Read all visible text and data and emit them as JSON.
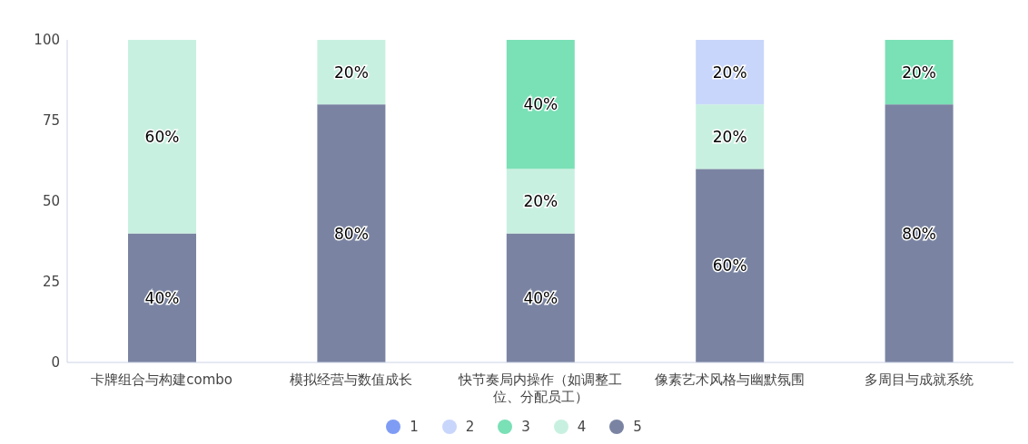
{
  "chart_data": {
    "type": "bar",
    "stacked": true,
    "categories": [
      "卡牌组合与构建combo",
      "模拟经营与数值成长",
      "快节奏局内操作（如调整工位、分配员工）",
      "像素艺术风格与幽默氛围",
      "多周目与成就系统"
    ],
    "ylim": [
      0,
      100
    ],
    "yticks": [
      0,
      25,
      50,
      75,
      100
    ],
    "legend": "bottom",
    "marker": "circle",
    "series": [
      {
        "name": "5",
        "color": "#7a84a2",
        "values": [
          40,
          80,
          40,
          60,
          80
        ],
        "value_labels": [
          "40%",
          "80%",
          "40%",
          "60%",
          "80%"
        ]
      },
      {
        "name": "4",
        "color": "#c8f0e0",
        "values": [
          60,
          20,
          20,
          20,
          0
        ],
        "value_labels": [
          "60%",
          "20%",
          "20%",
          "20%",
          null
        ]
      },
      {
        "name": "3",
        "color": "#7ae0b6",
        "values": [
          0,
          0,
          40,
          0,
          20
        ],
        "value_labels": [
          null,
          null,
          "40%",
          null,
          "20%"
        ]
      },
      {
        "name": "2",
        "color": "#c9d6fb",
        "values": [
          0,
          0,
          0,
          20,
          0
        ],
        "value_labels": [
          null,
          null,
          null,
          "20%",
          null
        ]
      },
      {
        "name": "1",
        "color": "#7f9cf5",
        "values": [
          0,
          0,
          0,
          0,
          0
        ],
        "value_labels": [
          null,
          null,
          null,
          null,
          null
        ]
      }
    ]
  }
}
